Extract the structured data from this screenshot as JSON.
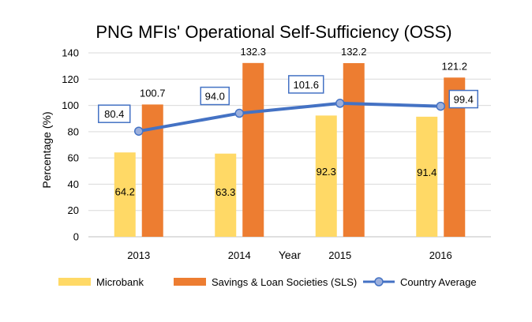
{
  "chart_data": {
    "type": "bar",
    "title": "PNG MFIs' Operational Self-Sufficiency (OSS)",
    "xlabel": "Year",
    "ylabel": "Percentage (%)",
    "categories": [
      "2013",
      "2014",
      "2015",
      "2016"
    ],
    "ylim": [
      0,
      140
    ],
    "yticks": [
      0,
      20,
      40,
      60,
      80,
      100,
      120,
      140
    ],
    "grid": true,
    "legend": "bottom",
    "series": [
      {
        "name": "Microbank",
        "type": "bar",
        "color": "#FFD966",
        "values": [
          64.2,
          63.3,
          92.3,
          91.4
        ],
        "labels": [
          "64.2",
          "63.3",
          "92.3",
          "91.4"
        ]
      },
      {
        "name": "Savings & Loan Societies (SLS)",
        "type": "bar",
        "color": "#ED7D31",
        "values": [
          100.7,
          132.3,
          132.2,
          121.2
        ],
        "labels": [
          "100.7",
          "132.3",
          "132.2",
          "121.2"
        ]
      },
      {
        "name": "Country Average",
        "type": "line",
        "color": "#4472C4",
        "values": [
          80.4,
          94.0,
          101.6,
          99.4
        ],
        "labels": [
          "80.4",
          "94.0",
          "101.6",
          "99.4"
        ]
      }
    ]
  }
}
